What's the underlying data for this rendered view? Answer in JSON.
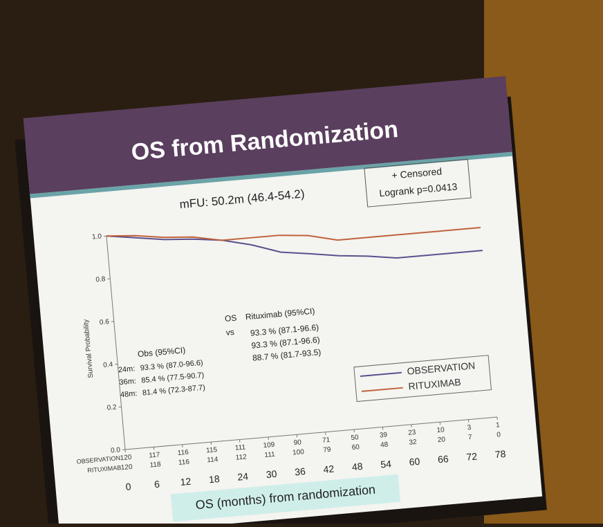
{
  "chart_data": {
    "type": "line",
    "title": "OS from Randomization",
    "subtitle": "mFU: 50.2m (46.4-54.2)",
    "censored_label": "+ Censored",
    "logrank": "Logrank p=0.0413",
    "ylabel": "Survival Probability",
    "xlabel": "OS (months) from randomization",
    "x": [
      0,
      6,
      12,
      18,
      24,
      30,
      36,
      42,
      48,
      54,
      60,
      66,
      72,
      78
    ],
    "series": [
      {
        "name": "OBSERVATION",
        "color": "#5b4f8e",
        "values": [
          1.0,
          0.98,
          0.96,
          0.95,
          0.933,
          0.9,
          0.854,
          0.835,
          0.814,
          0.8,
          0.78,
          0.78,
          0.78,
          0.78
        ]
      },
      {
        "name": "RITUXIMAB",
        "color": "#c0623c",
        "values": [
          1.0,
          0.99,
          0.97,
          0.96,
          0.933,
          0.933,
          0.933,
          0.92,
          0.887,
          0.887,
          0.887,
          0.887,
          0.887,
          0.887
        ]
      }
    ],
    "xlim": [
      0,
      78
    ],
    "xticks": [
      0,
      6,
      12,
      18,
      24,
      30,
      36,
      42,
      48,
      54,
      60,
      66,
      72,
      78
    ],
    "ylim": [
      0,
      1
    ],
    "yticks": [
      {
        "value": 0,
        "label": "0.0"
      },
      0.2,
      0.4,
      0.6,
      0.8,
      {
        "value": 1,
        "label": "1.0"
      }
    ],
    "legend": "lower right",
    "risk_table": [
      {
        "label": "OBSERVATION",
        "values": [
          "120",
          "117",
          "116",
          "115",
          "111",
          "109",
          "90",
          "71",
          "50",
          "39",
          "23",
          "10",
          "3",
          "1"
        ]
      },
      {
        "label": "RITUXIMAB",
        "values": [
          "120",
          "118",
          "116",
          "114",
          "112",
          "111",
          "100",
          "79",
          "60",
          "48",
          "32",
          "20",
          "7",
          "0"
        ]
      }
    ],
    "ci_table": {
      "os": "OS",
      "vs": "vs",
      "obs_header": "Obs (95%CI)",
      "rtx_header": "Rituximab (95%CI)",
      "rows": [
        {
          "time": "24m:",
          "obs": "93.3 % (87.0-96.6)",
          "rtx": "93.3 % (87.1-96.6)"
        },
        {
          "time": "36m:",
          "obs": "85.4 % (77.5-90.7)",
          "rtx": "93.3 % (87.1-96.6)"
        },
        {
          "time": "48m:",
          "obs": "81.4 % (72.3-87.7)",
          "rtx": "88.7 % (81.7-93.5)"
        }
      ]
    }
  }
}
